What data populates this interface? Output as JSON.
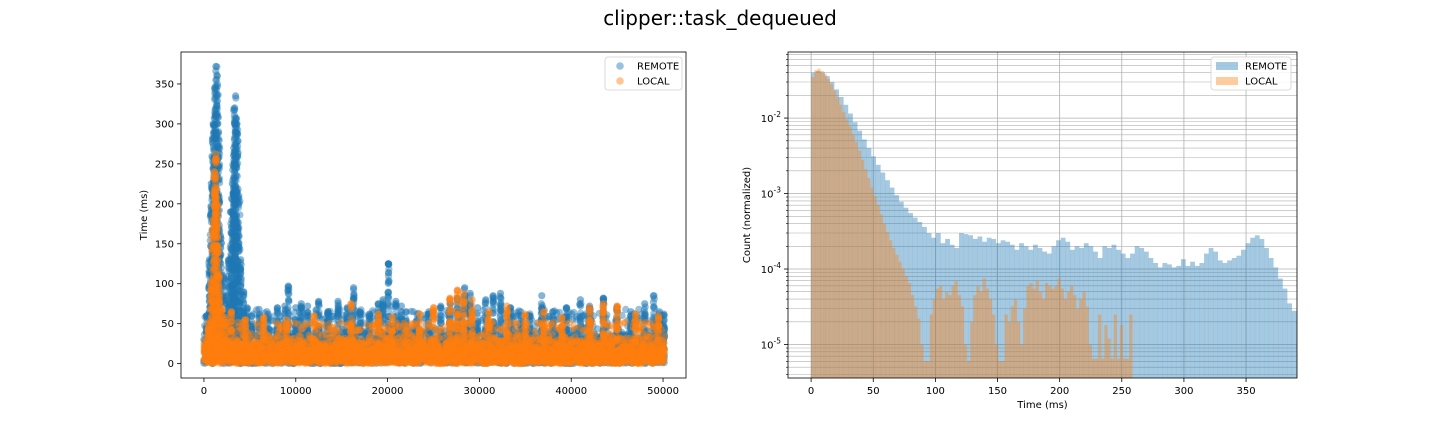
{
  "title": "clipper::task_dequeued",
  "colors": {
    "remote": "#1f77b4",
    "local": "#ff7f0e"
  },
  "chart_data": [
    {
      "type": "scatter",
      "title": "",
      "xlabel": "",
      "ylabel": "Time (ms)",
      "xlim": [
        -2500,
        52500
      ],
      "ylim": [
        -18,
        390
      ],
      "xticks": [
        0,
        10000,
        20000,
        30000,
        40000,
        50000
      ],
      "xtick_labels": [
        "0",
        "10000",
        "20000",
        "30000",
        "40000",
        "50000"
      ],
      "yticks": [
        0,
        50,
        100,
        150,
        200,
        250,
        300,
        350
      ],
      "ytick_labels": [
        "0",
        "50",
        "100",
        "150",
        "200",
        "250",
        "300",
        "350"
      ],
      "legend": {
        "placement": "top-right",
        "entries": [
          "REMOTE",
          "LOCAL"
        ]
      },
      "grid": false,
      "series": [
        {
          "name": "REMOTE",
          "color": "#1f77b4",
          "baseline_max_y": 50,
          "x_range": [
            0,
            50200
          ],
          "spikes": [
            {
              "x": 300,
              "y": 60
            },
            {
              "x": 600,
              "y": 130
            },
            {
              "x": 800,
              "y": 225
            },
            {
              "x": 1000,
              "y": 300
            },
            {
              "x": 1150,
              "y": 345
            },
            {
              "x": 1300,
              "y": 372
            },
            {
              "x": 1450,
              "y": 360
            },
            {
              "x": 1600,
              "y": 290
            },
            {
              "x": 1800,
              "y": 160
            },
            {
              "x": 2100,
              "y": 110
            },
            {
              "x": 2400,
              "y": 85
            },
            {
              "x": 2700,
              "y": 130
            },
            {
              "x": 2950,
              "y": 190
            },
            {
              "x": 3100,
              "y": 225
            },
            {
              "x": 3250,
              "y": 270
            },
            {
              "x": 3350,
              "y": 320
            },
            {
              "x": 3450,
              "y": 335
            },
            {
              "x": 3600,
              "y": 300
            },
            {
              "x": 3800,
              "y": 210
            },
            {
              "x": 4000,
              "y": 130
            },
            {
              "x": 4300,
              "y": 90
            },
            {
              "x": 4700,
              "y": 70
            },
            {
              "x": 5200,
              "y": 60
            },
            {
              "x": 6000,
              "y": 68
            },
            {
              "x": 7000,
              "y": 62
            },
            {
              "x": 8000,
              "y": 70
            },
            {
              "x": 8800,
              "y": 72
            },
            {
              "x": 9200,
              "y": 97
            },
            {
              "x": 10000,
              "y": 70
            },
            {
              "x": 10600,
              "y": 75
            },
            {
              "x": 11300,
              "y": 72
            },
            {
              "x": 12500,
              "y": 78
            },
            {
              "x": 13500,
              "y": 65
            },
            {
              "x": 14600,
              "y": 78
            },
            {
              "x": 15600,
              "y": 70
            },
            {
              "x": 16300,
              "y": 95
            },
            {
              "x": 17000,
              "y": 65
            },
            {
              "x": 18000,
              "y": 62
            },
            {
              "x": 19000,
              "y": 75
            },
            {
              "x": 19500,
              "y": 80
            },
            {
              "x": 20100,
              "y": 125
            },
            {
              "x": 20900,
              "y": 78
            },
            {
              "x": 21500,
              "y": 72
            },
            {
              "x": 22000,
              "y": 65
            },
            {
              "x": 23200,
              "y": 62
            },
            {
              "x": 24500,
              "y": 65
            },
            {
              "x": 25800,
              "y": 72
            },
            {
              "x": 26800,
              "y": 75
            },
            {
              "x": 27600,
              "y": 82
            },
            {
              "x": 28400,
              "y": 95
            },
            {
              "x": 29000,
              "y": 88
            },
            {
              "x": 29800,
              "y": 70
            },
            {
              "x": 30700,
              "y": 80
            },
            {
              "x": 31500,
              "y": 85
            },
            {
              "x": 32300,
              "y": 88
            },
            {
              "x": 33400,
              "y": 70
            },
            {
              "x": 34500,
              "y": 65
            },
            {
              "x": 35500,
              "y": 60
            },
            {
              "x": 36800,
              "y": 85
            },
            {
              "x": 38000,
              "y": 65
            },
            {
              "x": 39500,
              "y": 70
            },
            {
              "x": 41000,
              "y": 80
            },
            {
              "x": 42000,
              "y": 72
            },
            {
              "x": 43500,
              "y": 82
            },
            {
              "x": 45000,
              "y": 70
            },
            {
              "x": 46500,
              "y": 65
            },
            {
              "x": 48000,
              "y": 75
            },
            {
              "x": 49000,
              "y": 85
            },
            {
              "x": 49600,
              "y": 65
            },
            {
              "x": 50100,
              "y": 62
            }
          ]
        },
        {
          "name": "LOCAL",
          "color": "#ff7f0e",
          "baseline_max_y": 40,
          "x_range": [
            0,
            50200
          ],
          "spikes": [
            {
              "x": 500,
              "y": 50
            },
            {
              "x": 800,
              "y": 100
            },
            {
              "x": 1000,
              "y": 180
            },
            {
              "x": 1150,
              "y": 240
            },
            {
              "x": 1300,
              "y": 262
            },
            {
              "x": 1450,
              "y": 200
            },
            {
              "x": 1650,
              "y": 110
            },
            {
              "x": 1900,
              "y": 70
            },
            {
              "x": 2300,
              "y": 58
            },
            {
              "x": 3000,
              "y": 65
            },
            {
              "x": 4500,
              "y": 55
            },
            {
              "x": 6500,
              "y": 58
            },
            {
              "x": 9000,
              "y": 55
            },
            {
              "x": 12000,
              "y": 60
            },
            {
              "x": 16000,
              "y": 75
            },
            {
              "x": 19000,
              "y": 62
            },
            {
              "x": 20500,
              "y": 58
            },
            {
              "x": 23500,
              "y": 62
            },
            {
              "x": 25000,
              "y": 70
            },
            {
              "x": 26800,
              "y": 82
            },
            {
              "x": 27600,
              "y": 92
            },
            {
              "x": 28300,
              "y": 88
            },
            {
              "x": 29200,
              "y": 80
            },
            {
              "x": 31000,
              "y": 65
            },
            {
              "x": 33000,
              "y": 72
            },
            {
              "x": 35000,
              "y": 62
            },
            {
              "x": 37000,
              "y": 65
            },
            {
              "x": 39000,
              "y": 58
            },
            {
              "x": 42000,
              "y": 70
            },
            {
              "x": 43500,
              "y": 75
            },
            {
              "x": 45000,
              "y": 72
            },
            {
              "x": 47000,
              "y": 62
            },
            {
              "x": 49500,
              "y": 60
            }
          ]
        }
      ]
    },
    {
      "type": "bar",
      "subtype": "histogram",
      "title": "",
      "xlabel": "Time (ms)",
      "ylabel": "Count (normalized)",
      "xlim": [
        -18.6,
        391
      ],
      "ylim": [
        3.6e-06,
        0.075
      ],
      "yscale": "log",
      "xticks": [
        0,
        50,
        100,
        150,
        200,
        250,
        300,
        350
      ],
      "xtick_labels": [
        "0",
        "50",
        "100",
        "150",
        "200",
        "250",
        "300",
        "350"
      ],
      "ytick_exponents": [
        -5,
        -4,
        -3,
        -2
      ],
      "ytick_base": "10",
      "legend": {
        "placement": "top-right",
        "entries": [
          "REMOTE",
          "LOCAL"
        ]
      },
      "grid": true,
      "series": [
        {
          "name": "REMOTE",
          "color": "#1f77b4",
          "bin_start": 0,
          "bin_width": 3.72,
          "values": [
            0.04,
            0.042,
            0.04,
            0.036,
            0.03,
            0.024,
            0.019,
            0.015,
            0.0115,
            0.0088,
            0.0068,
            0.0052,
            0.004,
            0.0031,
            0.0024,
            0.0019,
            0.0015,
            0.0012,
            0.00095,
            0.00078,
            0.00065,
            0.00055,
            0.00048,
            0.00042,
            0.00036,
            0.0003,
            0.00026,
            0.0003,
            0.00022,
            0.00025,
            0.00021,
            0.00019,
            0.0003,
            0.00029,
            0.00028,
            0.00025,
            0.00027,
            0.00023,
            0.00026,
            0.00025,
            0.00022,
            0.00024,
            0.00023,
            0.00021,
            0.00018,
            0.00022,
            0.0002,
            0.00018,
            0.00021,
            0.00019,
            0.00017,
            0.00016,
            0.0002,
            0.00024,
            0.00026,
            0.00023,
            0.00018,
            0.0002,
            0.00019,
            0.00022,
            0.0002,
            0.00017,
            0.00014,
            0.0002,
            0.00019,
            0.00021,
            0.00018,
            0.00016,
            0.00014,
            0.00016,
            0.0002,
            0.00019,
            0.00017,
            0.00014,
            0.00012,
            0.000105,
            0.00012,
            0.000115,
            0.000105,
            0.00011,
            0.000135,
            0.00011,
            0.000125,
            0.00011,
            0.00012,
            0.00016,
            0.00019,
            0.00017,
            0.00013,
            0.00012,
            0.00013,
            0.00014,
            0.00015,
            0.00018,
            0.00022,
            0.00026,
            0.00028,
            0.00025,
            0.00019,
            0.00014,
            0.000105,
            7.5e-05,
            5.5e-05,
            3.5e-05,
            2.8e-05,
            2.2e-05,
            1.6e-05,
            6.5e-06,
            6.5e-06,
            1.8e-05,
            1.2e-05,
            2.8e-05,
            6.5e-06,
            6.5e-06,
            2.5e-05,
            3.7e-05,
            6.5e-06,
            6.5e-06
          ]
        },
        {
          "name": "LOCAL",
          "color": "#ff7f0e",
          "bin_start": 0,
          "bin_width": 2.51,
          "values": [
            0.035,
            0.043,
            0.045,
            0.042,
            0.038,
            0.033,
            0.028,
            0.023,
            0.019,
            0.015,
            0.012,
            0.0096,
            0.0077,
            0.0061,
            0.0048,
            0.0037,
            0.0028,
            0.0021,
            0.0016,
            0.0012,
            0.00092,
            0.0007,
            0.00053,
            0.0004,
            0.00031,
            0.00024,
            0.00019,
            0.000155,
            0.000125,
            0.0001,
            8e-05,
            6.5e-05,
            4.5e-05,
            3.2e-05,
            2.2e-05,
            1e-05,
            6e-06,
            6e-06,
            2.5e-05,
            4e-05,
            5.5e-05,
            6e-05,
            4e-05,
            5e-05,
            4.5e-05,
            6e-05,
            7e-05,
            4.5e-05,
            3.2e-05,
            1e-05,
            6e-06,
            2e-05,
            4.5e-05,
            6e-05,
            5e-05,
            7.5e-05,
            5.5e-05,
            4e-05,
            2.5e-05,
            1e-05,
            6e-06,
            6e-06,
            2.5e-05,
            2e-05,
            3.2e-05,
            4e-05,
            2e-05,
            1e-05,
            3e-05,
            6e-05,
            6.5e-05,
            5.5e-05,
            7e-05,
            5e-05,
            4e-05,
            6.5e-05,
            6e-05,
            5.5e-05,
            6e-05,
            7.5e-05,
            5.5e-05,
            4e-05,
            5e-05,
            6e-05,
            4.5e-05,
            3e-05,
            4e-05,
            5e-05,
            3.2e-05,
            1e-05,
            6.5e-06,
            6.5e-06,
            2.5e-05,
            6.5e-06,
            1.8e-05,
            1.2e-05,
            6.5e-06,
            2.5e-05,
            6.5e-06,
            1.8e-05,
            6.5e-06,
            6.5e-06,
            2.5e-05
          ]
        }
      ]
    }
  ]
}
